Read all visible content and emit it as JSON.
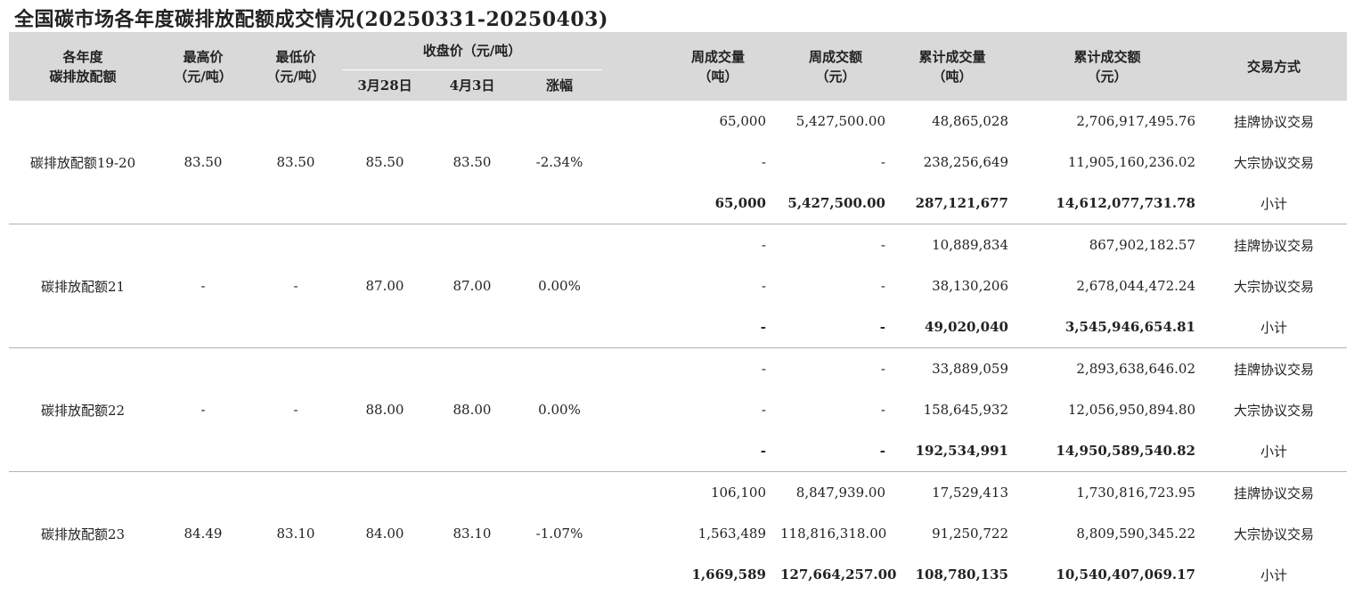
{
  "title": "全国碳市场各年度碳排放配额成交情况(20250331-20250403)",
  "headers": {
    "annual_line1": "各年度",
    "annual_line2": "碳排放配额",
    "high_line1": "最高价",
    "high_line2": "（元/吨）",
    "low_line1": "最低价",
    "low_line2": "（元/吨）",
    "close_group": "收盘价（元/吨）",
    "close_prev": "3月28日",
    "close_curr": "4月3日",
    "change": "涨幅",
    "week_vol_line1": "周成交量",
    "week_vol_line2": "（吨）",
    "week_amt_line1": "周成交额",
    "week_amt_line2": "（元）",
    "cum_vol_line1": "累计成交量",
    "cum_vol_line2": "（吨）",
    "cum_amt_line1": "累计成交额",
    "cum_amt_line2": "（元）",
    "method": "交易方式"
  },
  "groups": [
    {
      "name": "碳排放配额19-20",
      "high": "83.50",
      "low": "83.50",
      "close_prev": "85.50",
      "close_curr": "83.50",
      "change": "-2.34%",
      "rows": [
        {
          "week_vol": "65,000",
          "week_amt": "5,427,500.00",
          "cum_vol": "48,865,028",
          "cum_amt": "2,706,917,495.76",
          "method": "挂牌协议交易"
        },
        {
          "week_vol": "-",
          "week_amt": "-",
          "cum_vol": "238,256,649",
          "cum_amt": "11,905,160,236.02",
          "method": "大宗协议交易"
        },
        {
          "week_vol": "65,000",
          "week_amt": "5,427,500.00",
          "cum_vol": "287,121,677",
          "cum_amt": "14,612,077,731.78",
          "method": "小计"
        }
      ]
    },
    {
      "name": "碳排放配额21",
      "high": "-",
      "low": "-",
      "close_prev": "87.00",
      "close_curr": "87.00",
      "change": "0.00%",
      "rows": [
        {
          "week_vol": "-",
          "week_amt": "-",
          "cum_vol": "10,889,834",
          "cum_amt": "867,902,182.57",
          "method": "挂牌协议交易"
        },
        {
          "week_vol": "-",
          "week_amt": "-",
          "cum_vol": "38,130,206",
          "cum_amt": "2,678,044,472.24",
          "method": "大宗协议交易"
        },
        {
          "week_vol": "-",
          "week_amt": "-",
          "cum_vol": "49,020,040",
          "cum_amt": "3,545,946,654.81",
          "method": "小计"
        }
      ]
    },
    {
      "name": "碳排放配额22",
      "high": "-",
      "low": "-",
      "close_prev": "88.00",
      "close_curr": "88.00",
      "change": "0.00%",
      "rows": [
        {
          "week_vol": "-",
          "week_amt": "-",
          "cum_vol": "33,889,059",
          "cum_amt": "2,893,638,646.02",
          "method": "挂牌协议交易"
        },
        {
          "week_vol": "-",
          "week_amt": "-",
          "cum_vol": "158,645,932",
          "cum_amt": "12,056,950,894.80",
          "method": "大宗协议交易"
        },
        {
          "week_vol": "-",
          "week_amt": "-",
          "cum_vol": "192,534,991",
          "cum_amt": "14,950,589,540.82",
          "method": "小计"
        }
      ]
    },
    {
      "name": "碳排放配额23",
      "high": "84.49",
      "low": "83.10",
      "close_prev": "84.00",
      "close_curr": "83.10",
      "change": "-1.07%",
      "rows": [
        {
          "week_vol": "106,100",
          "week_amt": "8,847,939.00",
          "cum_vol": "17,529,413",
          "cum_amt": "1,730,816,723.95",
          "method": "挂牌协议交易"
        },
        {
          "week_vol": "1,563,489",
          "week_amt": "118,816,318.00",
          "cum_vol": "91,250,722",
          "cum_amt": "8,809,590,345.22",
          "method": "大宗协议交易"
        },
        {
          "week_vol": "1,669,589",
          "week_amt": "127,664,257.00",
          "cum_vol": "108,780,135",
          "cum_amt": "10,540,407,069.17",
          "method": "小计"
        }
      ]
    }
  ]
}
